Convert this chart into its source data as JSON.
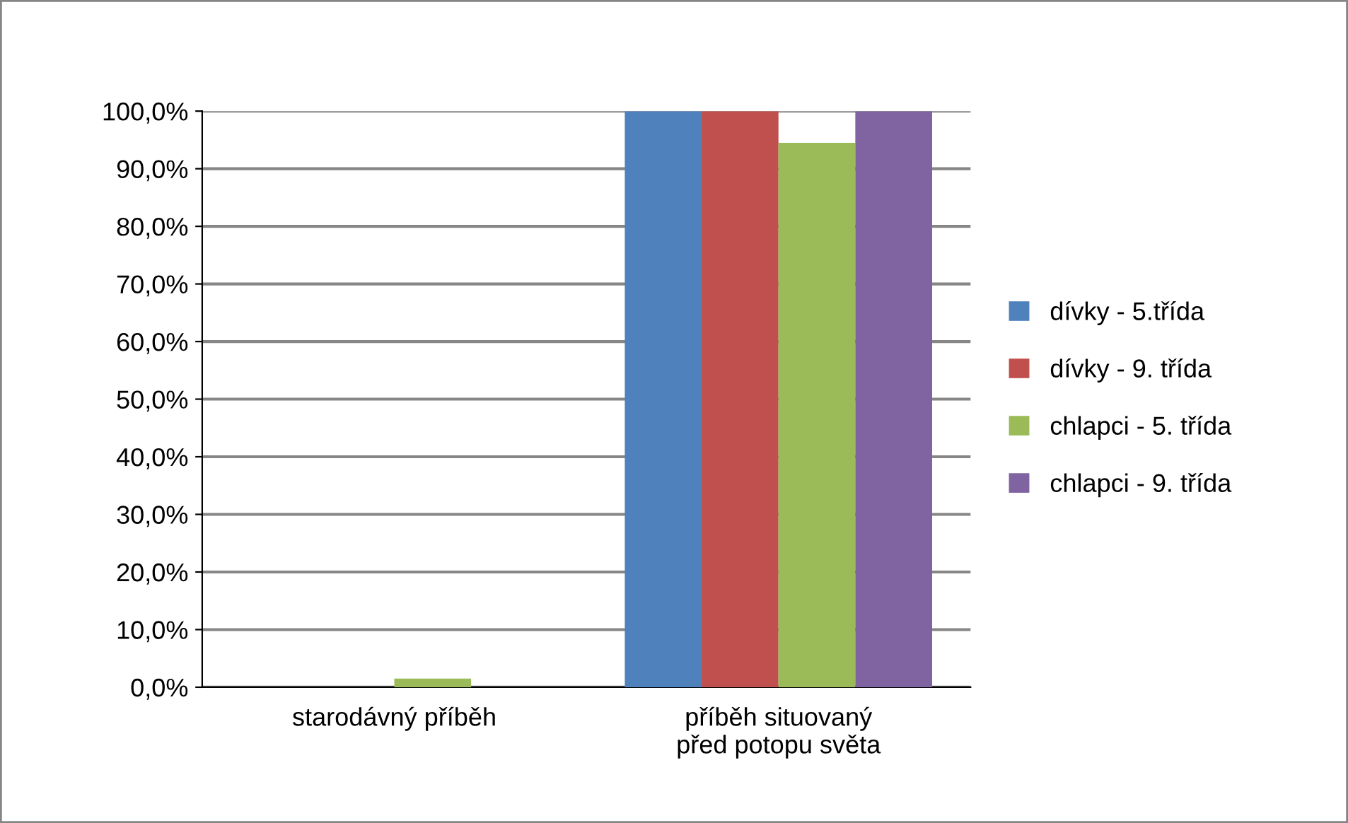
{
  "chart_data": {
    "type": "bar",
    "categories": [
      "starodávný příběh",
      "příběh situovaný\npřed potopu světa"
    ],
    "series": [
      {
        "name": "dívky - 5.třída",
        "color": "#4f81bd",
        "values": [
          0,
          100
        ]
      },
      {
        "name": "dívky - 9. třída",
        "color": "#c0504d",
        "values": [
          0,
          100
        ]
      },
      {
        "name": "chlapci - 5. třída",
        "color": "#9bbb59",
        "values": [
          1.5,
          94.5
        ]
      },
      {
        "name": "chlapci - 9. třída",
        "color": "#8064a2",
        "values": [
          0,
          100
        ]
      }
    ],
    "ylim": [
      0,
      100
    ],
    "yticks": [
      {
        "value": 0,
        "label": "0,0%"
      },
      {
        "value": 10,
        "label": "10,0%"
      },
      {
        "value": 20,
        "label": "20,0%"
      },
      {
        "value": 30,
        "label": "30,0%"
      },
      {
        "value": 40,
        "label": "40,0%"
      },
      {
        "value": 50,
        "label": "50,0%"
      },
      {
        "value": 60,
        "label": "60,0%"
      },
      {
        "value": 70,
        "label": "70,0%"
      },
      {
        "value": 80,
        "label": "80,0%"
      },
      {
        "value": 90,
        "label": "90,0%"
      },
      {
        "value": 100,
        "label": "100,0%"
      }
    ],
    "grid": "y",
    "legend": "right"
  }
}
